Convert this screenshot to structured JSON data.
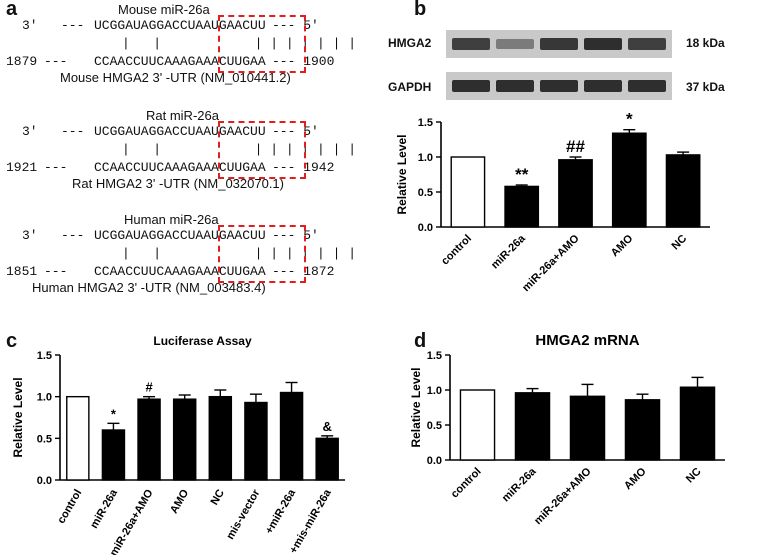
{
  "panels": {
    "a": {
      "label": "a",
      "alignments": [
        {
          "mirna_title": "Mouse   miR-26a",
          "top_prefix": "3'   ---",
          "mirna_seq": "UCGGAUAGGACCUAAUGAACUU",
          "top_suffix": "--- 5'",
          "bottom_start": "1879",
          "target_seq": "CCAACCUUCAAAGAAACUUGAA",
          "bottom_end": "--- 1900",
          "utr": "Mouse  HMGA2  3'  -UTR (NM_010441.2)"
        },
        {
          "mirna_title": "Rat   miR-26a",
          "top_prefix": "3'   ---",
          "mirna_seq": "UCGGAUAGGACCUAAUGAACUU",
          "top_suffix": "--- 5'",
          "bottom_start": "1921",
          "target_seq": "CCAACCUUCAAAGAAACUUGAA",
          "bottom_end": "--- 1942",
          "utr": "Rat  HMGA2  3'  -UTR (NM_032070.1)"
        },
        {
          "mirna_title": "Human   miR-26a",
          "top_prefix": "3'   ---",
          "mirna_seq": "UCGGAUAGGACCUAAUGAACUU",
          "top_suffix": "--- 5'",
          "bottom_start": "1851",
          "target_seq": "CCAACCUUCAAAGAAACUUGAA",
          "bottom_end": "--- 1872",
          "utr": "Human   HMGA2  3'  -UTR (NM_003483.4)"
        }
      ],
      "pairing": "|   |            | | | | | | |",
      "highlight_color": "#e02020"
    },
    "b": {
      "label": "b",
      "blots": [
        {
          "name": "HMGA2",
          "size": "18 kDa",
          "intensities": [
            0.8,
            0.45,
            0.85,
            0.9,
            0.8
          ]
        },
        {
          "name": "GAPDH",
          "size": "37 kDa",
          "intensities": [
            0.9,
            0.9,
            0.9,
            0.9,
            0.9
          ]
        }
      ]
    },
    "c": {
      "label": "c"
    },
    "d": {
      "label": "d"
    }
  },
  "chart_data": [
    {
      "id": "b",
      "type": "bar",
      "title": "",
      "ylabel": "Relative Level",
      "ylim": [
        0,
        1.5
      ],
      "yticks": [
        "0.0",
        "0.5",
        "1.0",
        "1.5"
      ],
      "categories": [
        "control",
        "miR-26a",
        "miR-26a+AMO",
        "AMO",
        "NC"
      ],
      "values": [
        1.0,
        0.58,
        0.96,
        1.34,
        1.03
      ],
      "errors": [
        0.0,
        0.02,
        0.04,
        0.05,
        0.04
      ],
      "annotations": [
        "",
        "**",
        "##",
        "*",
        ""
      ],
      "fills": [
        "#ffffff",
        "#000000",
        "#000000",
        "#000000",
        "#000000"
      ]
    },
    {
      "id": "c",
      "type": "bar",
      "title": "Luciferase Assay",
      "ylabel": "Relative Level",
      "ylim": [
        0,
        1.5
      ],
      "yticks": [
        "0.0",
        "0.5",
        "1.0",
        "1.5"
      ],
      "categories": [
        "control",
        "miR-26a",
        "miR-26a+AMO",
        "AMO",
        "NC",
        "mis-vector",
        "+miR-26a",
        "+mis-miR-26a"
      ],
      "values": [
        1.0,
        0.6,
        0.97,
        0.97,
        1.0,
        0.93,
        1.05,
        0.5
      ],
      "errors": [
        0.0,
        0.08,
        0.03,
        0.05,
        0.08,
        0.1,
        0.12,
        0.03
      ],
      "annotations": [
        "",
        "*",
        "#",
        "",
        "",
        "",
        "",
        "&"
      ],
      "fills": [
        "#ffffff",
        "#000000",
        "#000000",
        "#000000",
        "#000000",
        "#000000",
        "#000000",
        "#000000"
      ]
    },
    {
      "id": "d",
      "type": "bar",
      "title": "HMGA2 mRNA",
      "ylabel": "Relative Level",
      "ylim": [
        0,
        1.5
      ],
      "yticks": [
        "0.0",
        "0.5",
        "1.0",
        "1.5"
      ],
      "categories": [
        "control",
        "miR-26a",
        "miR-26a+AMO",
        "AMO",
        "NC"
      ],
      "values": [
        1.0,
        0.96,
        0.91,
        0.86,
        1.04
      ],
      "errors": [
        0.0,
        0.06,
        0.17,
        0.08,
        0.14
      ],
      "annotations": [
        "",
        "",
        "",
        "",
        ""
      ],
      "fills": [
        "#ffffff",
        "#000000",
        "#000000",
        "#000000",
        "#000000"
      ]
    }
  ]
}
